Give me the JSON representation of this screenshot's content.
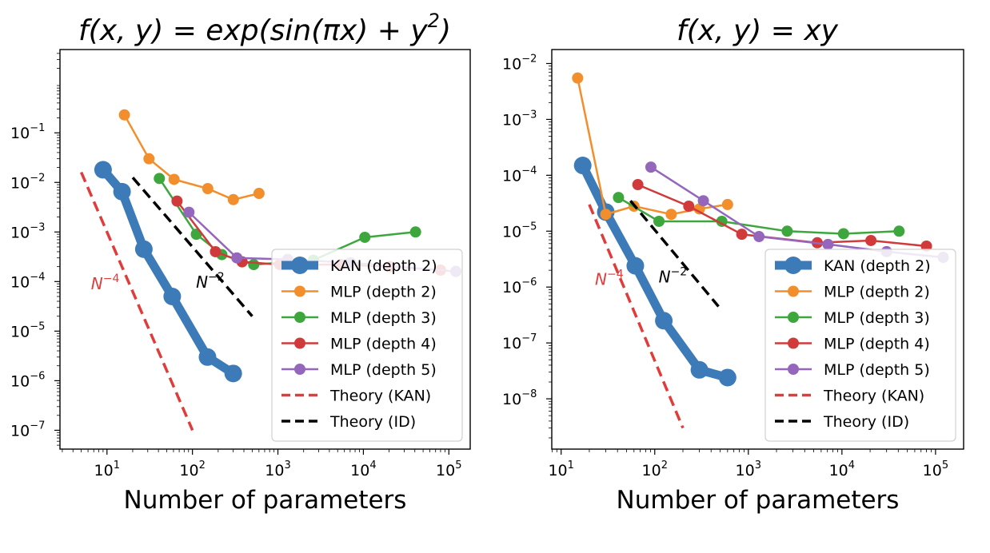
{
  "chart_data": [
    {
      "type": "line",
      "title": "f(x, y) = exp(sin(πx) + y²)",
      "title_parts": {
        "main": "f(x, y) = exp(sin(πx) + y",
        "sup": "2",
        "end": ")"
      },
      "xlabel": "Number of parameters",
      "xscale": "log",
      "yscale": "log",
      "xlim_log10": [
        0.45,
        5.25
      ],
      "ylim_log10": [
        -7.38,
        0.68
      ],
      "xticks": [
        {
          "base": "10",
          "exp": "1",
          "pos": 1
        },
        {
          "base": "10",
          "exp": "2",
          "pos": 2
        },
        {
          "base": "10",
          "exp": "3",
          "pos": 3
        },
        {
          "base": "10",
          "exp": "4",
          "pos": 4
        },
        {
          "base": "10",
          "exp": "5",
          "pos": 5
        }
      ],
      "yticks": [
        {
          "base": "10",
          "exp": "−1",
          "pos": -1
        },
        {
          "base": "10",
          "exp": "−2",
          "pos": -2
        },
        {
          "base": "10",
          "exp": "−3",
          "pos": -3
        },
        {
          "base": "10",
          "exp": "−4",
          "pos": -4
        },
        {
          "base": "10",
          "exp": "−5",
          "pos": -5
        },
        {
          "base": "10",
          "exp": "−6",
          "pos": -6
        },
        {
          "base": "10",
          "exp": "−7",
          "pos": -7
        }
      ],
      "series": [
        {
          "name": "KAN (depth 2)",
          "style": "kan",
          "color": "#3d7ab8",
          "x": [
            9,
            15,
            27,
            58,
            150,
            300
          ],
          "y": [
            0.018,
            0.0065,
            0.00045,
            5e-05,
            3e-06,
            1.4e-06
          ]
        },
        {
          "name": "MLP (depth 2)",
          "style": "mlp",
          "color": "#f28e2b",
          "x": [
            16,
            31,
            61,
            151,
            301,
            601
          ],
          "y": [
            0.23,
            0.03,
            0.0115,
            0.0075,
            0.0045,
            0.006
          ]
        },
        {
          "name": "MLP (depth 3)",
          "style": "mlp",
          "color": "#3da63d",
          "x": [
            41,
            111,
            221,
            521,
            2601,
            10401,
            40801
          ],
          "y": [
            0.012,
            0.0009,
            0.00035,
            0.00022,
            0.00027,
            0.00078,
            0.001
          ]
        },
        {
          "name": "MLP (depth 4)",
          "style": "mlp",
          "color": "#d13a3a",
          "x": [
            66,
            186,
            381,
            1051,
            5451,
            20401,
            80001
          ],
          "y": [
            0.0042,
            0.0004,
            0.00025,
            0.00022,
            0.00022,
            0.0002,
            0.00017
          ]
        },
        {
          "name": "MLP (depth 5)",
          "style": "mlp",
          "color": "#9467bd",
          "x": [
            91,
            331,
            1301,
            7101,
            120801
          ],
          "y": [
            0.0025,
            0.0003,
            0.00028,
            0.00024,
            0.00016
          ]
        },
        {
          "name": "Theory (KAN)",
          "style": "theory",
          "color": "#e03c3c",
          "x": [
            5,
            100
          ],
          "y": [
            0.016,
            1e-07
          ]
        },
        {
          "name": "Theory (ID)",
          "style": "theory",
          "color": "#000000",
          "x": [
            20,
            500
          ],
          "y": [
            0.0125,
            2e-05
          ]
        }
      ],
      "annotations": [
        {
          "text_base": "N",
          "text_exp": "−4",
          "color": "#e03c3c",
          "x": 6.5,
          "y": 7e-05
        },
        {
          "text_base": "N",
          "text_exp": "−2",
          "color": "#000000",
          "x": 110,
          "y": 7.5e-05
        }
      ],
      "legend": "lower-right"
    },
    {
      "type": "line",
      "title": "f(x, y) = xy",
      "title_parts": {
        "main": "f(x, y) = xy",
        "sup": "",
        "end": ""
      },
      "xlabel": "Number of parameters",
      "xscale": "log",
      "yscale": "log",
      "xlim_log10": [
        0.9,
        5.3
      ],
      "ylim_log10": [
        -8.9,
        -1.75
      ],
      "xticks": [
        {
          "base": "10",
          "exp": "1",
          "pos": 1
        },
        {
          "base": "10",
          "exp": "2",
          "pos": 2
        },
        {
          "base": "10",
          "exp": "3",
          "pos": 3
        },
        {
          "base": "10",
          "exp": "4",
          "pos": 4
        },
        {
          "base": "10",
          "exp": "5",
          "pos": 5
        }
      ],
      "yticks": [
        {
          "base": "10",
          "exp": "−2",
          "pos": -2
        },
        {
          "base": "10",
          "exp": "−3",
          "pos": -3
        },
        {
          "base": "10",
          "exp": "−4",
          "pos": -4
        },
        {
          "base": "10",
          "exp": "−5",
          "pos": -5
        },
        {
          "base": "10",
          "exp": "−6",
          "pos": -6
        },
        {
          "base": "10",
          "exp": "−7",
          "pos": -7
        },
        {
          "base": "10",
          "exp": "−8",
          "pos": -8
        }
      ],
      "series": [
        {
          "name": "KAN (depth 2)",
          "style": "kan",
          "color": "#3d7ab8",
          "x": [
            17,
            30,
            62,
            125,
            300,
            600
          ],
          "y": [
            0.00015,
            2.2e-05,
            2.4e-06,
            2.5e-07,
            3.3e-08,
            2.4e-08
          ]
        },
        {
          "name": "MLP (depth 2)",
          "style": "mlp",
          "color": "#f28e2b",
          "x": [
            15,
            30,
            60,
            150,
            300,
            600
          ],
          "y": [
            0.0055,
            2e-05,
            2.8e-05,
            2e-05,
            2.5e-05,
            3e-05
          ]
        },
        {
          "name": "MLP (depth 3)",
          "style": "mlp",
          "color": "#3da63d",
          "x": [
            41,
            111,
            521,
            2601,
            10401,
            40801
          ],
          "y": [
            4e-05,
            1.5e-05,
            1.5e-05,
            1e-05,
            9e-06,
            1e-05
          ]
        },
        {
          "name": "MLP (depth 4)",
          "style": "mlp",
          "color": "#d13a3a",
          "x": [
            66,
            231,
            851,
            5451,
            20401,
            80001
          ],
          "y": [
            6.8e-05,
            2.8e-05,
            8.8e-06,
            6.2e-06,
            6.8e-06,
            5.4e-06
          ]
        },
        {
          "name": "MLP (depth 5)",
          "style": "mlp",
          "color": "#9467bd",
          "x": [
            91,
            331,
            1301,
            7101,
            30001,
            120801
          ],
          "y": [
            0.00014,
            3.5e-05,
            8e-06,
            5.8e-06,
            4.3e-06,
            3.4e-06
          ]
        },
        {
          "name": "Theory (KAN)",
          "style": "theory",
          "color": "#e03c3c",
          "x": [
            20,
            200
          ],
          "y": [
            3e-05,
            3e-09
          ]
        },
        {
          "name": "Theory (ID)",
          "style": "theory",
          "color": "#000000",
          "x": [
            55,
            480
          ],
          "y": [
            3.5e-05,
            4.5e-07
          ]
        }
      ],
      "annotations": [
        {
          "text_base": "N",
          "text_exp": "−4",
          "color": "#e03c3c",
          "x": 23,
          "y": 1.1e-06
        },
        {
          "text_base": "N",
          "text_exp": "−2",
          "color": "#000000",
          "x": 110,
          "y": 1.2e-06
        }
      ],
      "legend": "lower-right"
    }
  ]
}
